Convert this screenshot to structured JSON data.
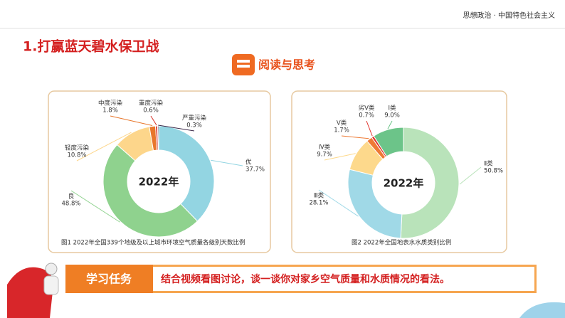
{
  "header": {
    "subject": "思想政治 · 中国特色社会主义",
    "title": "1.打赢蓝天碧水保卫战",
    "badge": "阅读与思考"
  },
  "chart_data": [
    {
      "type": "pie",
      "donut": true,
      "center_label": "2022年",
      "caption": "图1 2022年全国339个地级及以上城市环境空气质量各级别天数比例",
      "categories": [
        "优",
        "良",
        "轻度污染",
        "中度污染",
        "重度污染",
        "严重污染"
      ],
      "values": [
        37.7,
        48.8,
        10.8,
        1.8,
        0.6,
        0.3
      ],
      "value_labels": [
        "37.7%",
        "48.8%",
        "10.8%",
        "1.8%",
        "0.6%",
        "0.3%"
      ],
      "colors": [
        "#93d5e2",
        "#8fd28e",
        "#fdd68b",
        "#e8772c",
        "#d8342a",
        "#3d2a4a"
      ]
    },
    {
      "type": "pie",
      "donut": true,
      "center_label": "2022年",
      "caption": "图2 2022年全国地表水水质类别比例",
      "categories": [
        "Ⅱ类",
        "Ⅲ类",
        "Ⅳ类",
        "Ⅴ类",
        "劣Ⅴ类",
        "Ⅰ类"
      ],
      "values": [
        50.8,
        28.1,
        9.7,
        1.7,
        0.7,
        9.0
      ],
      "value_labels": [
        "50.8%",
        "28.1%",
        "9.7%",
        "1.7%",
        "0.7%",
        "9.0%"
      ],
      "colors": [
        "#b9e3ba",
        "#a0d9e7",
        "#fdd98c",
        "#ee7a35",
        "#e0332b",
        "#6cc489"
      ]
    }
  ],
  "task": {
    "label": "学习任务",
    "text": "结合视频看图讨论，谈一谈你对家乡空气质量和水质情况的看法。"
  }
}
